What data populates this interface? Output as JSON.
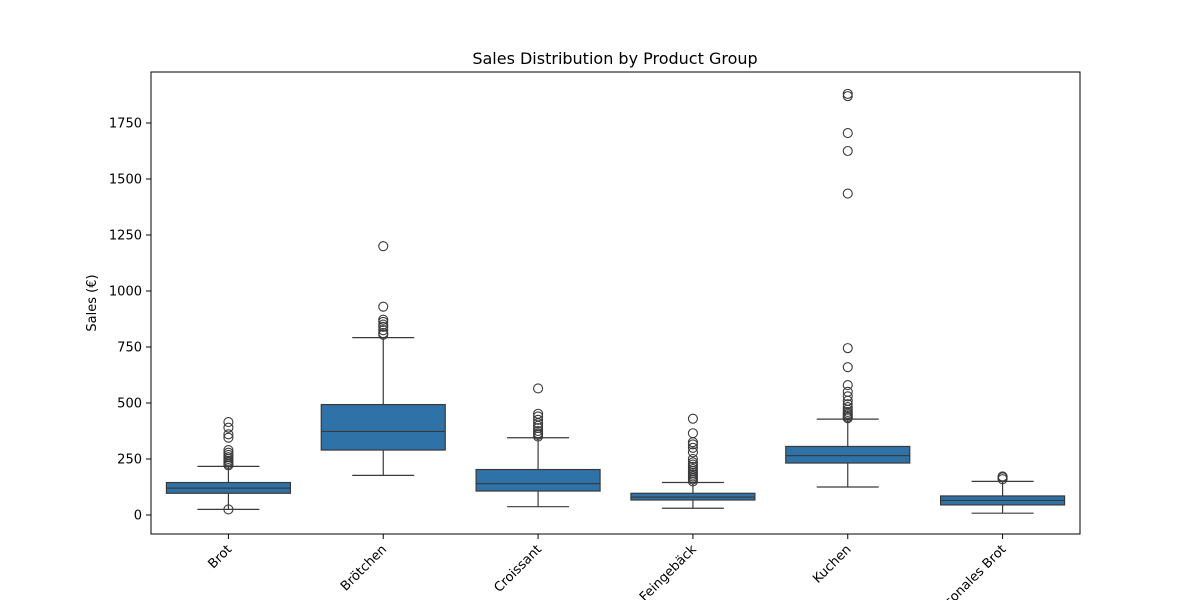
{
  "chart_data": {
    "type": "box",
    "title": "Sales Distribution by Product Group",
    "xlabel": "",
    "ylabel": "Sales (€)",
    "ylim": [
      -75,
      1960
    ],
    "yticks": [
      0,
      250,
      500,
      750,
      1000,
      1250,
      1500,
      1750
    ],
    "grid": false,
    "box_color": "#2f72a8",
    "categories": [
      "Brot",
      "Brötchen",
      "Croissant",
      "Feingebäck",
      "Kuchen",
      "Saisonales Brot"
    ],
    "boxes": [
      {
        "category": "Brot",
        "whisker_low": 25,
        "q1": 97,
        "median": 120,
        "q3": 145,
        "whisker_high": 217,
        "outliers": [
          25,
          222,
          228,
          235,
          242,
          250,
          258,
          268,
          278,
          290,
          345,
          360,
          390,
          415
        ]
      },
      {
        "category": "Brötchen",
        "whisker_low": 177,
        "q1": 290,
        "median": 373,
        "q3": 493,
        "whisker_high": 792,
        "outliers": [
          805,
          812,
          825,
          840,
          850,
          862,
          872,
          930,
          1200
        ]
      },
      {
        "category": "Croissant",
        "whisker_low": 37,
        "q1": 107,
        "median": 140,
        "q3": 203,
        "whisker_high": 345,
        "outliers": [
          350,
          358,
          365,
          375,
          388,
          398,
          410,
          425,
          440,
          452,
          565
        ]
      },
      {
        "category": "Feingebäck",
        "whisker_low": 30,
        "q1": 67,
        "median": 80,
        "q3": 97,
        "whisker_high": 145,
        "outliers": [
          150,
          158,
          165,
          172,
          180,
          188,
          196,
          205,
          215,
          225,
          235,
          250,
          280,
          300,
          315,
          325,
          365,
          430
        ]
      },
      {
        "category": "Kuchen",
        "whisker_low": 125,
        "q1": 232,
        "median": 265,
        "q3": 306,
        "whisker_high": 428,
        "outliers": [
          432,
          438,
          445,
          452,
          460,
          470,
          482,
          495,
          510,
          530,
          550,
          580,
          660,
          745,
          1435,
          1625,
          1705,
          1870,
          1880
        ]
      },
      {
        "category": "Saisonales Brot",
        "whisker_low": 8,
        "q1": 45,
        "median": 65,
        "q3": 85,
        "whisker_high": 150,
        "outliers": [
          160,
          168,
          172
        ]
      }
    ]
  }
}
